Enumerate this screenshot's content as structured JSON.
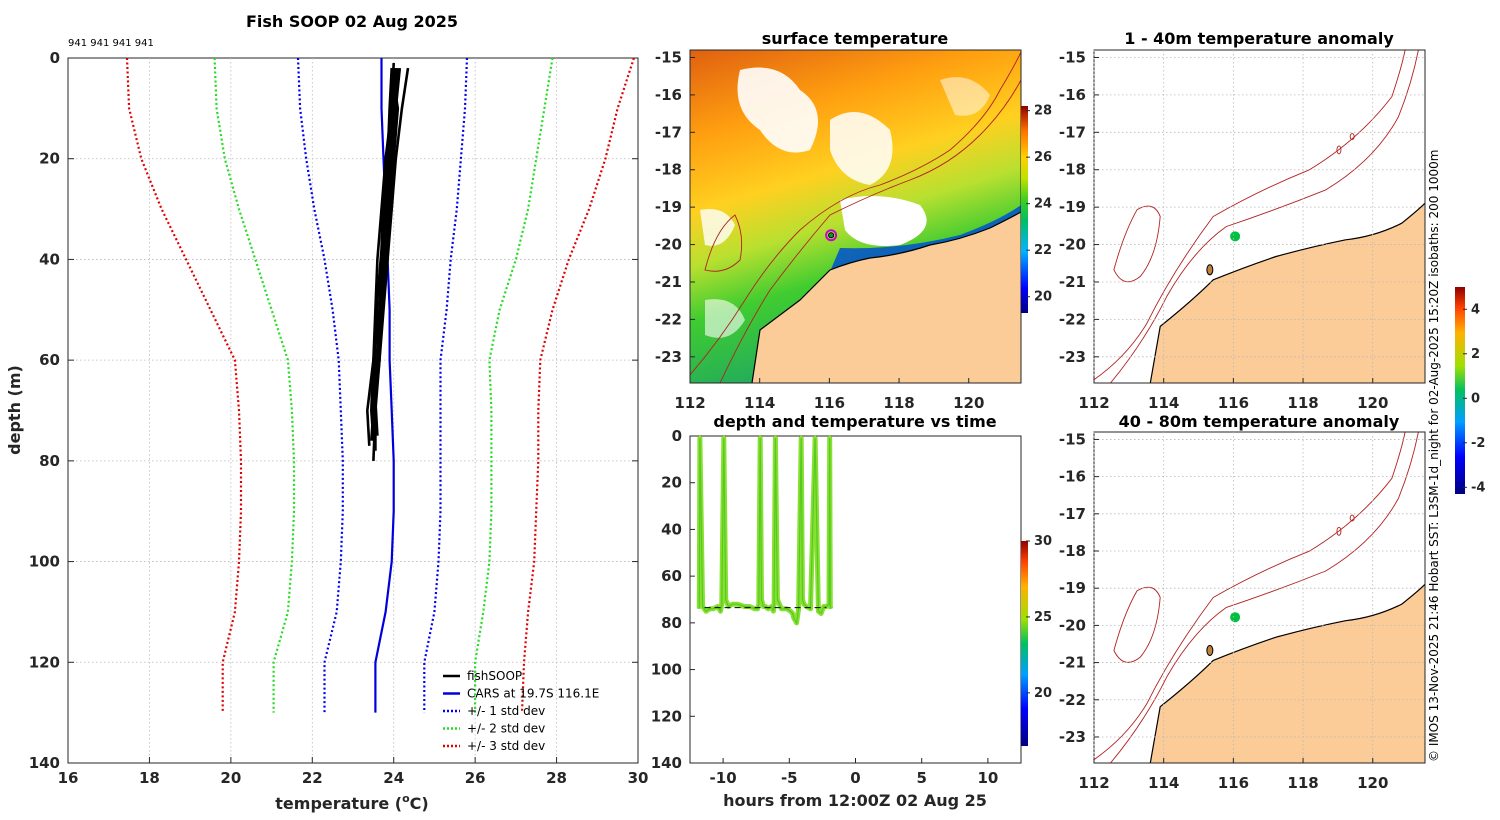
{
  "figure": {
    "title": "Fish SOOP 02 Aug 2025",
    "depth_flags": "941 941 941 941",
    "copyright": "© IMOS 13-Nov-2025 21:46 Hobart SST: L3SM-1d_night for 02-Aug-2025 15:20Z isobaths: 200  1000m",
    "land_color": "#fbcb98",
    "coast_color": "#000000",
    "isobath_color": "#b22222",
    "vessel_marker_color": "#00c040"
  },
  "chart_data": [
    {
      "id": "profile",
      "type": "line",
      "title": "",
      "xlabel": "temperature (",
      "xlabel_sup": "o",
      "xlabel_tail": "C)",
      "ylabel": "depth (m)",
      "xlim": [
        16,
        30
      ],
      "ylim": [
        0,
        140
      ],
      "xticks": [
        16,
        18,
        20,
        22,
        24,
        26,
        28,
        30
      ],
      "yticks": [
        0,
        20,
        40,
        60,
        80,
        100,
        120,
        140
      ],
      "depth": [
        0,
        10,
        20,
        30,
        40,
        50,
        60,
        70,
        80,
        90,
        100,
        110,
        120,
        130
      ],
      "series": [
        {
          "name": "+/- 3 std dev",
          "color": "#e00000",
          "style": "dotted",
          "x": [
            17.45,
            17.5,
            17.8,
            18.3,
            18.9,
            19.5,
            20.1,
            20.2,
            20.25,
            20.25,
            20.2,
            20.1,
            19.8,
            19.8
          ]
        },
        {
          "name": "",
          "color": "#e00000",
          "style": "dotted",
          "x": [
            29.9,
            29.5,
            29.2,
            28.8,
            28.3,
            27.9,
            27.6,
            27.55,
            27.55,
            27.5,
            27.45,
            27.3,
            27.2,
            27.15
          ]
        },
        {
          "name": "+/- 2 std dev",
          "color": "#22dd22",
          "style": "dotted",
          "x": [
            19.6,
            19.65,
            19.85,
            20.2,
            20.6,
            21.0,
            21.4,
            21.5,
            21.55,
            21.55,
            21.5,
            21.4,
            21.05,
            21.05
          ]
        },
        {
          "name": "",
          "color": "#22dd22",
          "style": "dotted",
          "x": [
            27.9,
            27.7,
            27.5,
            27.3,
            27.0,
            26.6,
            26.35,
            26.4,
            26.4,
            26.4,
            26.35,
            26.2,
            26.0,
            26.0
          ]
        },
        {
          "name": "+/- 1 std dev",
          "color": "#0000ee",
          "style": "dotted",
          "x": [
            21.65,
            21.7,
            21.85,
            22.05,
            22.3,
            22.5,
            22.65,
            22.7,
            22.75,
            22.75,
            22.7,
            22.6,
            22.3,
            22.3
          ]
        },
        {
          "name": "",
          "color": "#0000ee",
          "style": "dotted",
          "x": [
            25.8,
            25.75,
            25.65,
            25.55,
            25.4,
            25.3,
            25.15,
            25.15,
            25.15,
            25.15,
            25.1,
            25.0,
            24.75,
            24.75
          ]
        },
        {
          "name": "CARS at 19.7S 116.1E",
          "color": "#0000dd",
          "style": "solid",
          "x": [
            23.7,
            23.7,
            23.75,
            23.8,
            23.85,
            23.9,
            23.9,
            23.95,
            24.0,
            24.0,
            23.95,
            23.8,
            23.55,
            23.55
          ]
        }
      ],
      "fishsoop": {
        "name": "fishSOOP",
        "color": "#000000",
        "casts": [
          {
            "depth": [
              2,
              10,
              20,
              30,
              40,
              50,
              60,
              70,
              76
            ],
            "temp": [
              23.95,
              23.9,
              23.85,
              23.75,
              23.7,
              23.65,
              23.6,
              23.5,
              23.45
            ]
          },
          {
            "depth": [
              2,
              10,
              20,
              30,
              40,
              50,
              60,
              70,
              78
            ],
            "temp": [
              24.05,
              24.0,
              23.9,
              23.8,
              23.75,
              23.7,
              23.6,
              23.55,
              23.55
            ]
          },
          {
            "depth": [
              2,
              10,
              20,
              30,
              40,
              50,
              60,
              70,
              80
            ],
            "temp": [
              24.15,
              24.05,
              23.95,
              23.85,
              23.8,
              23.7,
              23.65,
              23.55,
              23.5
            ]
          },
          {
            "depth": [
              2,
              10,
              20,
              30,
              40,
              50,
              60,
              68,
              75
            ],
            "temp": [
              24.35,
              24.2,
              24.05,
              23.95,
              23.85,
              23.75,
              23.65,
              23.55,
              23.6
            ]
          },
          {
            "depth": [
              2,
              10,
              20,
              30,
              40,
              50,
              60,
              70,
              77
            ],
            "temp": [
              23.95,
              24.1,
              24.0,
              23.9,
              23.8,
              23.65,
              23.5,
              23.35,
              23.4
            ]
          },
          {
            "depth": [
              1,
              10,
              20,
              30,
              40,
              50,
              60,
              70,
              76
            ],
            "temp": [
              24.0,
              23.95,
              23.8,
              23.7,
              23.6,
              23.55,
              23.5,
              23.45,
              23.5
            ]
          },
          {
            "depth": [
              2,
              10,
              18,
              28,
              38,
              48,
              58,
              68,
              74
            ],
            "temp": [
              24.1,
              24.0,
              23.85,
              23.75,
              23.7,
              23.6,
              23.55,
              23.5,
              23.55
            ]
          }
        ]
      },
      "legend": [
        "fishSOOP",
        "CARS at 19.7S 116.1E",
        "+/- 1 std dev",
        "+/- 2 std dev",
        "+/- 3 std dev"
      ]
    },
    {
      "id": "sst",
      "type": "heatmap",
      "title": "surface temperature",
      "xlim": [
        112,
        121.5
      ],
      "ylim": [
        -23.7,
        -14.8
      ],
      "xticks": [
        112,
        114,
        116,
        118,
        120
      ],
      "yticks": [
        -15,
        -16,
        -17,
        -18,
        -19,
        -20,
        -21,
        -22,
        -23
      ],
      "colorbar": {
        "range": [
          19.3,
          28.2
        ],
        "ticks": [
          20,
          22,
          24,
          26,
          28
        ]
      },
      "vessel_position": [
        116.05,
        -19.75
      ]
    },
    {
      "id": "timeseries",
      "type": "line",
      "title": "depth and temperature vs time",
      "xlabel": "hours from 12:00Z 02 Aug 25",
      "xlim": [
        -12.5,
        12.5
      ],
      "ylim": [
        0,
        140
      ],
      "xticks": [
        -10,
        -5,
        0,
        5,
        10
      ],
      "yticks": [
        0,
        20,
        40,
        60,
        80,
        100,
        120,
        140
      ],
      "colorbar": {
        "range": [
          16.5,
          30
        ],
        "ticks": [
          20,
          25,
          30
        ]
      },
      "trace_color": "#88e030",
      "trace_time": [
        -11.8,
        -11.75,
        -11.55,
        -11.3,
        -11.0,
        -10.75,
        -10.4,
        -10.2,
        -10.1,
        -9.95,
        -9.8,
        -9.6,
        -9.3,
        -8.9,
        -8.4,
        -8.0,
        -7.6,
        -7.4,
        -7.3,
        -7.2,
        -7.1,
        -6.95,
        -6.8,
        -6.6,
        -6.35,
        -6.2,
        -6.15,
        -6.05,
        -5.9,
        -5.6,
        -5.2,
        -4.9,
        -4.75,
        -4.65,
        -4.55,
        -4.45,
        -4.3,
        -4.1,
        -4.0,
        -3.9,
        -3.7,
        -3.4,
        -3.05,
        -2.8,
        -2.6,
        -2.4,
        -2.2,
        -2.0,
        -1.95,
        -1.9,
        -1.85
      ],
      "trace_depth": [
        74,
        1,
        73,
        75,
        74,
        74,
        73,
        75,
        72,
        1,
        70,
        73,
        72,
        72,
        73,
        73,
        74,
        74,
        72,
        1,
        70,
        73,
        73,
        74,
        73,
        75,
        72,
        1,
        70,
        74,
        74,
        75,
        76,
        78,
        79,
        80,
        74,
        1,
        70,
        72,
        73,
        74,
        1,
        75,
        76,
        73,
        73,
        72,
        1,
        73,
        74
      ]
    },
    {
      "id": "anom1",
      "type": "heatmap",
      "title": "1 - 40m temperature anomaly",
      "xlim": [
        112,
        121.5
      ],
      "ylim": [
        -23.7,
        -14.8
      ],
      "xticks": [
        112,
        114,
        116,
        118,
        120
      ],
      "yticks": [
        -15,
        -16,
        -17,
        -18,
        -19,
        -20,
        -21,
        -22,
        -23
      ],
      "vessel_position": [
        116.05,
        -19.78
      ],
      "colorbar": {
        "range": [
          -4.3,
          5.0
        ],
        "ticks": [
          -4,
          -2,
          0,
          2,
          4
        ]
      }
    },
    {
      "id": "anom2",
      "type": "heatmap",
      "title": "40 - 80m temperature anomaly",
      "xlim": [
        112,
        121.5
      ],
      "ylim": [
        -23.7,
        -14.8
      ],
      "xticks": [
        112,
        114,
        116,
        118,
        120
      ],
      "yticks": [
        -15,
        -16,
        -17,
        -18,
        -19,
        -20,
        -21,
        -22,
        -23
      ],
      "vessel_position": [
        116.05,
        -19.78
      ]
    }
  ]
}
